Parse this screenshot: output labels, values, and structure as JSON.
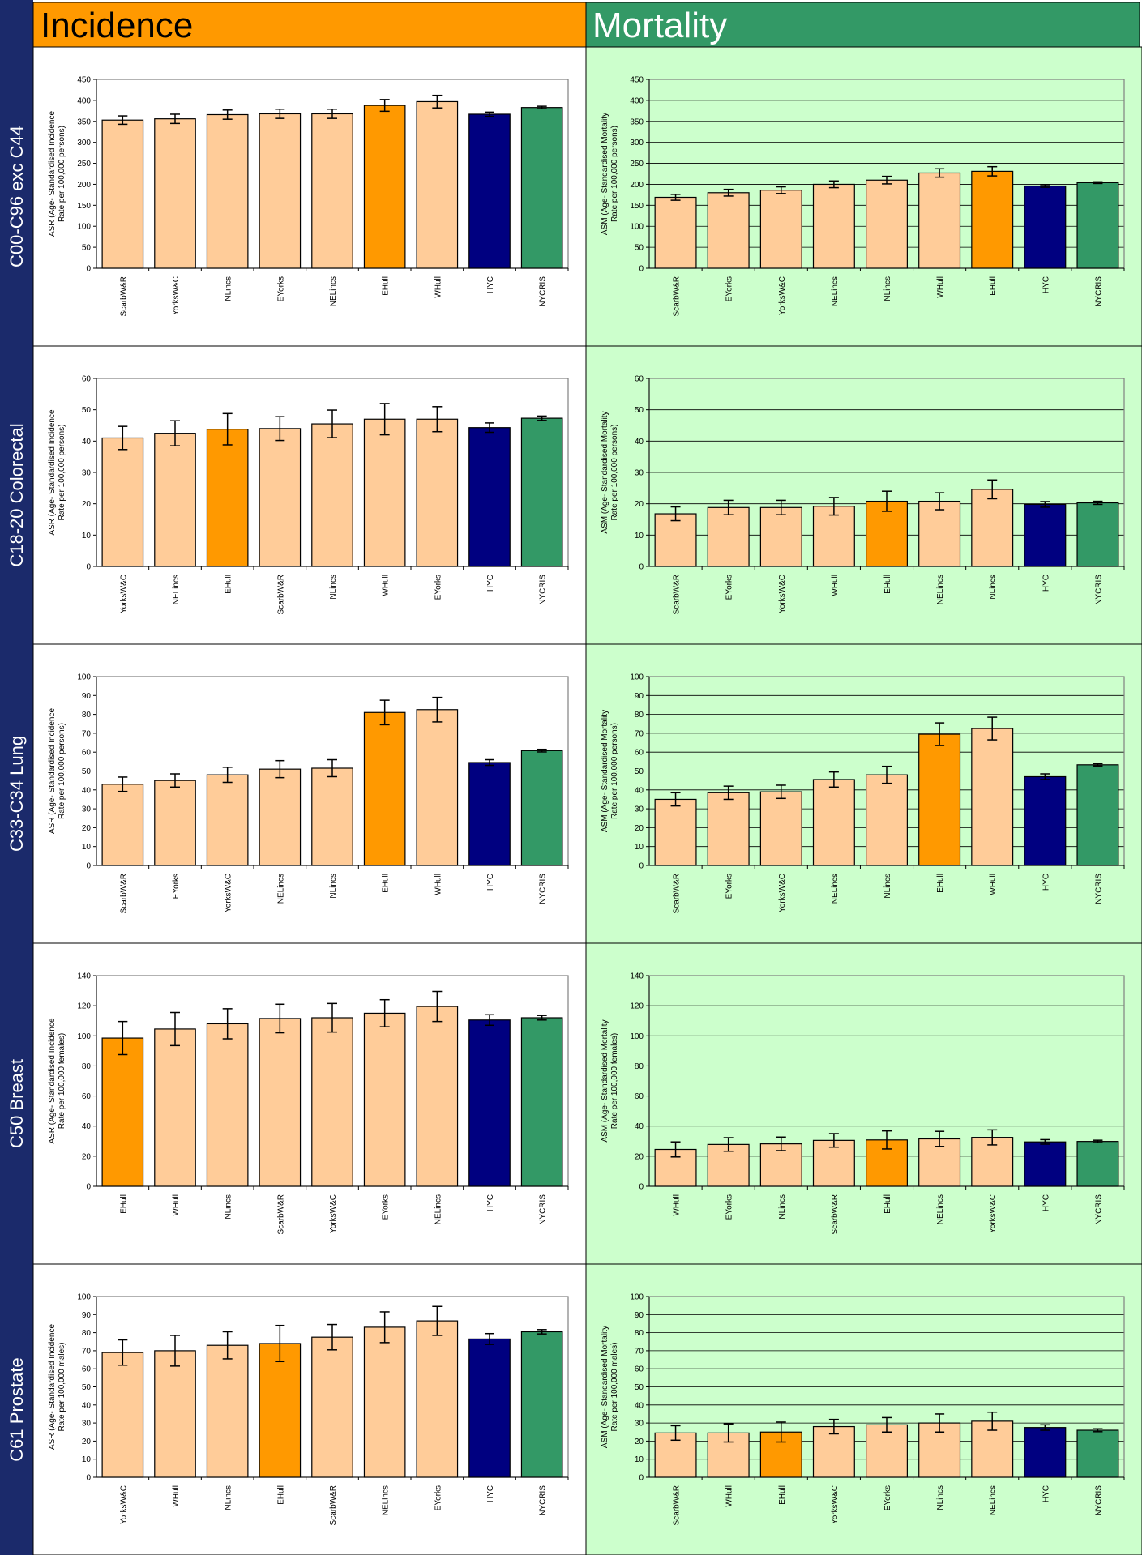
{
  "header": {
    "incidence": "Incidence",
    "mortality": "Mortality"
  },
  "colors": {
    "navy": "#1b2a6b",
    "incidence_header": "#ff9900",
    "mortality_header": "#339966",
    "mortality_bg": "#ccffcc",
    "bar_default": "#ffcc99",
    "bar_ehull": "#ff9900",
    "bar_hyc": "#000080",
    "bar_nycris": "#339966"
  },
  "rows": [
    {
      "label": "C00-C96 exc C44"
    },
    {
      "label": "C18-20 Colorectal"
    },
    {
      "label": "C33-C34 Lung"
    },
    {
      "label": "C50 Breast"
    },
    {
      "label": "C61 Prostate"
    }
  ],
  "chart_data": [
    {
      "type": "bar",
      "row": 0,
      "col": 0,
      "ylabel": [
        "ASR (Age- Standardised Incidence",
        "Rate per 100,000 persons)"
      ],
      "ylim": [
        0,
        450
      ],
      "step": 50,
      "categories": [
        "ScarbW&R",
        "YorksW&C",
        "NLincs",
        "EYorks",
        "NELincs",
        "EHull",
        "WHull",
        "HYC",
        "NYCRIS"
      ],
      "values": [
        353,
        356,
        366,
        368,
        368,
        388,
        397,
        367,
        383
      ],
      "err": [
        10,
        11,
        11,
        11,
        11,
        14,
        15,
        5,
        3
      ]
    },
    {
      "type": "bar",
      "row": 0,
      "col": 1,
      "ylabel": [
        "ASM (Age- Standardised Mortality",
        "Rate per 100,000 persons)"
      ],
      "ylim": [
        0,
        450
      ],
      "step": 50,
      "categories": [
        "ScarbW&R",
        "EYorks",
        "YorksW&C",
        "NELincs",
        "NLincs",
        "WHull",
        "EHull",
        "HYC",
        "NYCRIS"
      ],
      "values": [
        169,
        180,
        186,
        200,
        210,
        227,
        231,
        196,
        204
      ],
      "err": [
        7,
        8,
        8,
        8,
        9,
        10,
        11,
        3,
        2
      ]
    },
    {
      "type": "bar",
      "row": 1,
      "col": 0,
      "ylabel": [
        "ASR (Age- Standardised Incidence",
        "Rate per 100,000 persons)"
      ],
      "ylim": [
        0,
        60
      ],
      "step": 10,
      "categories": [
        "YorksW&C",
        "NELincs",
        "EHull",
        "ScarbW&R",
        "NLincs",
        "WHull",
        "EYorks",
        "HYC",
        "NYCRIS"
      ],
      "values": [
        41,
        42.5,
        43.8,
        44,
        45.5,
        47,
        47,
        44.3,
        47.3
      ],
      "err": [
        3.7,
        4,
        5,
        3.8,
        4.4,
        5,
        4,
        1.5,
        0.7
      ]
    },
    {
      "type": "bar",
      "row": 1,
      "col": 1,
      "ylabel": [
        "ASM (Age- Standardised Mortality",
        "Rate per 100,000 persons)"
      ],
      "ylim": [
        0,
        60
      ],
      "step": 10,
      "categories": [
        "ScarbW&R",
        "EYorks",
        "YorksW&C",
        "WHull",
        "EHull",
        "NELincs",
        "NLincs",
        "HYC",
        "NYCRIS"
      ],
      "values": [
        16.8,
        18.8,
        18.8,
        19.2,
        20.8,
        20.8,
        24.6,
        19.8,
        20.3
      ],
      "err": [
        2.2,
        2.3,
        2.3,
        2.8,
        3.2,
        2.7,
        3,
        0.9,
        0.5
      ]
    },
    {
      "type": "bar",
      "row": 2,
      "col": 0,
      "ylabel": [
        "ASR (Age- Standardised Incidence",
        "Rate per 100,000 persons)"
      ],
      "ylim": [
        0,
        100
      ],
      "step": 10,
      "categories": [
        "ScarbW&R",
        "EYorks",
        "YorksW&C",
        "NELincs",
        "NLincs",
        "EHull",
        "WHull",
        "HYC",
        "NYCRIS"
      ],
      "values": [
        43,
        45,
        48,
        51,
        51.5,
        81,
        82.5,
        54.5,
        60.8
      ],
      "err": [
        3.8,
        3.5,
        4,
        4.5,
        4.5,
        6.5,
        6.5,
        1.5,
        0.7
      ]
    },
    {
      "type": "bar",
      "row": 2,
      "col": 1,
      "ylabel": [
        "ASM (Age- Standardised Mortality",
        "Rate per 100,000 persons)"
      ],
      "ylim": [
        0,
        100
      ],
      "step": 10,
      "categories": [
        "ScarbW&R",
        "EYorks",
        "YorksW&C",
        "NELincs",
        "NLincs",
        "EHull",
        "WHull",
        "HYC",
        "NYCRIS"
      ],
      "values": [
        35,
        38.5,
        39,
        45.5,
        48,
        69.5,
        72.5,
        47,
        53.3
      ],
      "err": [
        3.5,
        3.5,
        3.5,
        4,
        4.5,
        6,
        6,
        1.5,
        0.6
      ]
    },
    {
      "type": "bar",
      "row": 3,
      "col": 0,
      "ylabel": [
        "ASR (Age- Standardised Incidence",
        "Rate per 100,000 females)"
      ],
      "ylim": [
        0,
        140
      ],
      "step": 20,
      "categories": [
        "EHull",
        "WHull",
        "NLincs",
        "ScarbW&R",
        "YorksW&C",
        "EYorks",
        "NELincs",
        "HYC",
        "NYCRIS"
      ],
      "values": [
        98.5,
        104.5,
        108,
        111.5,
        112,
        115,
        119.5,
        110.5,
        112
      ],
      "err": [
        11,
        11,
        10,
        9.5,
        9.5,
        9,
        10,
        3.5,
        1.5
      ]
    },
    {
      "type": "bar",
      "row": 3,
      "col": 1,
      "ylabel": [
        "ASM (Age- Standardised Mortality",
        "Rate per 100,000 females)"
      ],
      "ylim": [
        0,
        140
      ],
      "step": 20,
      "categories": [
        "WHull",
        "EYorks",
        "NLincs",
        "ScarbW&R",
        "EHull",
        "NELincs",
        "YorksW&C",
        "HYC",
        "NYCRIS"
      ],
      "values": [
        24.5,
        27.8,
        28.2,
        30.5,
        30.8,
        31.5,
        32.5,
        29.5,
        29.8
      ],
      "err": [
        5,
        4.5,
        4.5,
        4.5,
        6,
        5,
        5,
        1.5,
        0.8
      ]
    },
    {
      "type": "bar",
      "row": 4,
      "col": 0,
      "ylabel": [
        "ASR (Age- Standardised Incidence",
        "Rate per 100,000 males)"
      ],
      "ylim": [
        0,
        100
      ],
      "step": 10,
      "categories": [
        "YorksW&C",
        "WHull",
        "NLincs",
        "EHull",
        "ScarbW&R",
        "NELincs",
        "EYorks",
        "HYC",
        "NYCRIS"
      ],
      "values": [
        69,
        70,
        73,
        74,
        77.5,
        83,
        86.5,
        76.5,
        80.5
      ],
      "err": [
        7,
        8.5,
        7.5,
        10,
        7,
        8.5,
        8,
        3,
        1.2
      ]
    },
    {
      "type": "bar",
      "row": 4,
      "col": 1,
      "ylabel": [
        "ASM (Age- Standardised Mortality",
        "Rate per 100,000 males)"
      ],
      "ylim": [
        0,
        100
      ],
      "step": 10,
      "categories": [
        "ScarbW&R",
        "WHull",
        "EHull",
        "YorksW&C",
        "EYorks",
        "NLincs",
        "NELincs",
        "HYC",
        "NYCRIS"
      ],
      "values": [
        24.5,
        24.5,
        25,
        28,
        29,
        30,
        31,
        27.5,
        26
      ],
      "err": [
        4,
        5,
        5.5,
        4,
        4,
        5,
        5,
        1.5,
        0.8
      ]
    }
  ]
}
